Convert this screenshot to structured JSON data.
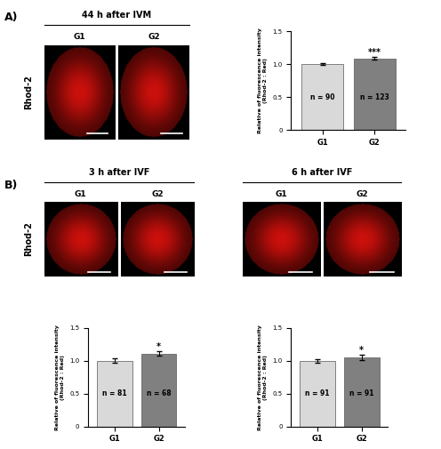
{
  "panels": [
    {
      "label": "A)",
      "row_label": "Rhod-2",
      "groups": [
        {
          "title": "44 h after IVM",
          "images": [
            "G1",
            "G2"
          ]
        }
      ]
    },
    {
      "label": "B)",
      "row_label": "Rhod-2",
      "groups": [
        {
          "title": "3 h after IVF",
          "images": [
            "G1",
            "G2"
          ]
        },
        {
          "title": "6 h after IVF",
          "images": [
            "G1",
            "G2"
          ]
        }
      ]
    }
  ],
  "chart_data": [
    {
      "type": "bar",
      "categories": [
        "G1",
        "G2"
      ],
      "values": [
        1.0,
        1.09
      ],
      "error": [
        0.015,
        0.02
      ],
      "colors": [
        "#d9d9d9",
        "#808080"
      ],
      "y_label": "Relative of fluorescence intensity\n(Rhod-2 : Red)",
      "ylim": [
        0,
        1.5
      ],
      "yticks": [
        0,
        {
          "value": 0.5,
          "label": "0.5"
        },
        {
          "value": 1.0,
          "label": "1.0"
        },
        {
          "value": 1.5,
          "label": "1.5"
        }
      ],
      "n_labels": [
        "n = 90",
        "n = 123"
      ],
      "significance": "***"
    },
    {
      "type": "bar",
      "categories": [
        "G1",
        "G2"
      ],
      "values": [
        1.0,
        1.11
      ],
      "error": [
        0.03,
        0.04
      ],
      "colors": [
        "#d9d9d9",
        "#808080"
      ],
      "y_label": "Relative of fluorescence intensity\n(Rhod-2 : Red)",
      "ylim": [
        0,
        1.5
      ],
      "yticks": [
        0,
        {
          "value": 0.5,
          "label": "0.5"
        },
        {
          "value": 1.0,
          "label": "1.0"
        },
        {
          "value": 1.5,
          "label": "1.5"
        }
      ],
      "n_labels": [
        "n = 81",
        "n = 68"
      ],
      "significance": "*"
    },
    {
      "type": "bar",
      "categories": [
        "G1",
        "G2"
      ],
      "values": [
        1.0,
        1.05
      ],
      "error": [
        0.025,
        0.035
      ],
      "colors": [
        "#d9d9d9",
        "#808080"
      ],
      "y_label": "Relative of fluorescence intensity\n(Rhod-2 : Red)",
      "ylim": [
        0,
        1.5
      ],
      "yticks": [
        0,
        {
          "value": 0.5,
          "label": "0.5"
        },
        {
          "value": 1.0,
          "label": "1.0"
        },
        {
          "value": 1.5,
          "label": "1.5"
        }
      ],
      "n_labels": [
        "n = 91",
        "n = 91"
      ],
      "significance": "*"
    }
  ]
}
